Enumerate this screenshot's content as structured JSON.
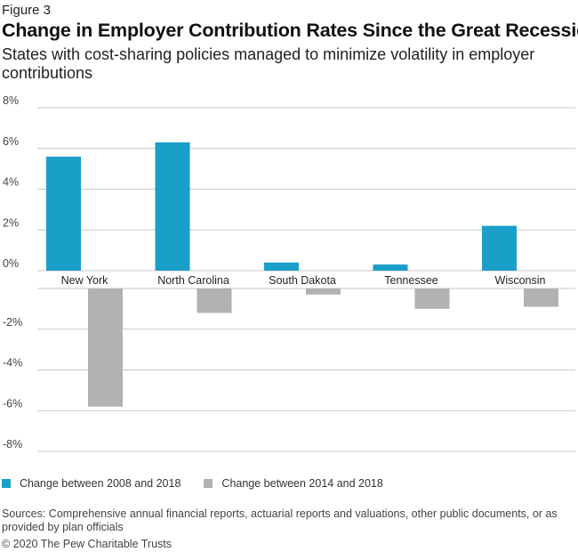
{
  "figure_label": "Figure 3",
  "colors": {
    "series1": "#1a9fc9",
    "series2": "#b2b2b2",
    "grid": "#c8c8c8"
  },
  "chart_data": {
    "type": "bar",
    "title": "Change in Employer Contribution Rates Since the Great Recession",
    "subtitle": "States with cost-sharing policies managed to minimize volatility in employer contributions",
    "categories": [
      "New York",
      "North Carolina",
      "South Dakota",
      "Tennessee",
      "Wisconsin"
    ],
    "series": [
      {
        "name": "Change between 2008 and 2018",
        "values": [
          5.6,
          6.3,
          0.4,
          0.3,
          2.2
        ]
      },
      {
        "name": "Change between 2014 and 2018",
        "values": [
          -5.8,
          -1.2,
          -0.3,
          -1.0,
          -0.9
        ]
      }
    ],
    "yticks": [
      "8%",
      "6%",
      "4%",
      "2%",
      "0%",
      "-2%",
      "-4%",
      "-6%",
      "-8%"
    ],
    "ylim": [
      -8,
      8
    ],
    "grid": true,
    "legend_position": "bottom-left"
  },
  "sources": "Sources: Comprehensive annual financial reports, actuarial reports and valuations, other public documents, or as provided by plan officials",
  "copyright": "© 2020 The Pew Charitable Trusts"
}
